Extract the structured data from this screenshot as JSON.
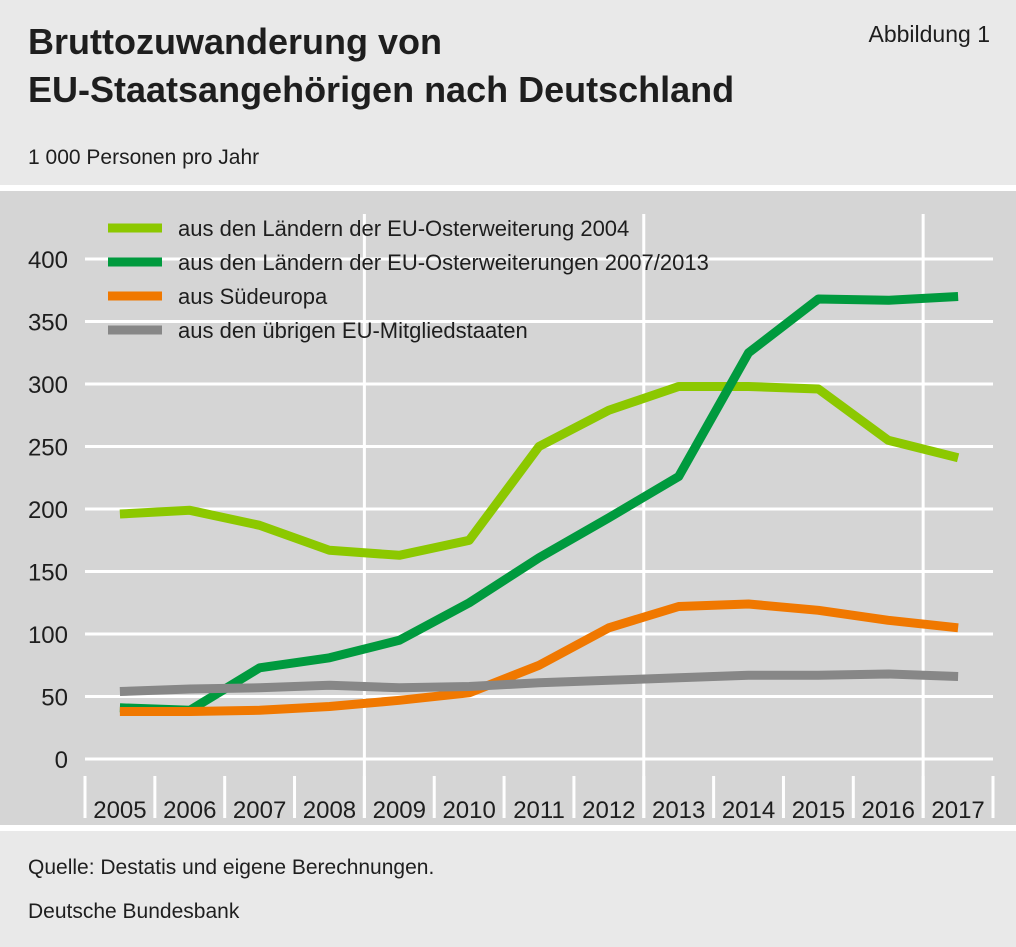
{
  "header": {
    "title_line1": "Bruttozuwanderung von",
    "title_line2": "EU-Staatsangehörigen nach Deutschland",
    "figure_label": "Abbildung 1",
    "unit": "1 000 Personen pro Jahr"
  },
  "footer": {
    "source": "Quelle: Destatis und eigene Berechnungen.",
    "publisher": "Deutsche Bundesbank"
  },
  "chart_data": {
    "type": "line",
    "title": "Bruttozuwanderung von EU-Staatsangehörigen nach Deutschland",
    "ylabel": "1 000 Personen pro Jahr",
    "xlabel": "",
    "ylim": [
      0,
      400
    ],
    "yticks": [
      0,
      50,
      100,
      150,
      200,
      250,
      300,
      350,
      400
    ],
    "grid": true,
    "legend_position": "top-left",
    "categories": [
      "2005",
      "2006",
      "2007",
      "2008",
      "2009",
      "2010",
      "2011",
      "2012",
      "2013",
      "2014",
      "2015",
      "2016",
      "2017"
    ],
    "series": [
      {
        "name": "aus den Ländern der EU-Osterweiterung 2004",
        "color": "#8cc800",
        "values": [
          196,
          199,
          187,
          167,
          163,
          175,
          250,
          279,
          298,
          298,
          296,
          255,
          241
        ]
      },
      {
        "name": "aus den Ländern der EU-Osterweiterungen 2007/2013",
        "color": "#009a3e",
        "values": [
          41,
          39,
          73,
          81,
          95,
          125,
          161,
          193,
          226,
          325,
          368,
          367,
          370
        ]
      },
      {
        "name": "aus Südeuropa",
        "color": "#f07800",
        "values": [
          38,
          38,
          39,
          42,
          47,
          53,
          75,
          105,
          122,
          124,
          119,
          111,
          105
        ]
      },
      {
        "name": "aus den übrigen EU-Mitgliedstaaten",
        "color": "#878787",
        "values": [
          54,
          56,
          57,
          59,
          57,
          58,
          61,
          63,
          65,
          67,
          67,
          68,
          66
        ]
      }
    ]
  }
}
